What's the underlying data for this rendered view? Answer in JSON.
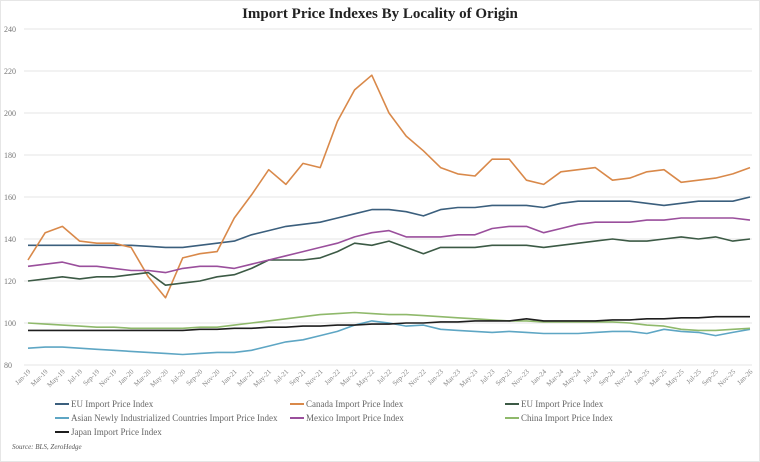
{
  "chart_data": {
    "type": "line",
    "title": "Import Price Indexes By Locality of Origin",
    "ylim": [
      80,
      240
    ],
    "yticks": [
      80,
      100,
      120,
      140,
      160,
      180,
      200,
      220,
      240
    ],
    "grid": true,
    "legend_placement": "bottom",
    "x": [
      "Jan-19",
      "Mar-19",
      "May-19",
      "Jul-19",
      "Sep-19",
      "Nov-19",
      "Jan-20",
      "Mar-20",
      "May-20",
      "Jul-20",
      "Sep-20",
      "Nov-20",
      "Jan-21",
      "Mar-21",
      "May-21",
      "Jul-21",
      "Sep-21",
      "Nov-21",
      "Jan-22",
      "Mar-22",
      "May-22",
      "Jul-22",
      "Sep-22",
      "Nov-22",
      "Jan-23",
      "Mar-23",
      "May-23",
      "Jul-23",
      "Sep-23",
      "Nov-23",
      "Jan-24",
      "Mar-24",
      "May-24",
      "Jul-24",
      "Sep-24",
      "Nov-24",
      "Jan-25",
      "Mar-25",
      "May-25",
      "Jul-25",
      "Sep-25",
      "Nov-25",
      "Jan-26"
    ],
    "series": [
      {
        "name": "EU Import Price Index",
        "color": "#3b5f7d",
        "values": [
          137,
          137,
          137,
          137,
          137,
          137,
          137,
          136.5,
          136,
          136,
          137,
          138,
          139,
          142,
          144,
          146,
          147,
          148,
          150,
          152,
          154,
          154,
          153,
          151,
          154,
          155,
          155,
          156,
          156,
          156,
          155,
          157,
          158,
          158,
          158,
          158,
          157,
          156,
          157,
          158,
          158,
          158,
          160
        ]
      },
      {
        "name": "Canada Import Price Index",
        "color": "#d9894a",
        "values": [
          130,
          143,
          146,
          139,
          138,
          138,
          136,
          122,
          112,
          131,
          133,
          134,
          150,
          161,
          173,
          166,
          176,
          174,
          196,
          211,
          218,
          200,
          189,
          182,
          174,
          171,
          170,
          178,
          178,
          168,
          166,
          172,
          173,
          174,
          168,
          169,
          172,
          173,
          167,
          168,
          169,
          171,
          174
        ]
      },
      {
        "name": "EU Import Price Index",
        "color": "#3c5a45",
        "values": [
          120,
          121,
          122,
          121,
          122,
          122,
          123,
          124,
          118,
          119,
          120,
          122,
          123,
          126,
          130,
          130,
          130,
          131,
          134,
          138,
          137,
          139,
          136,
          133,
          136,
          136,
          136,
          137,
          137,
          137,
          136,
          137,
          138,
          139,
          140,
          139,
          139,
          140,
          141,
          140,
          141,
          139,
          140
        ]
      },
      {
        "name": "Asian Newly Industrialized Countries Import Price Index",
        "color": "#5ea6c4",
        "values": [
          88,
          88.5,
          88.5,
          88,
          87.5,
          87,
          86.5,
          86,
          85.5,
          85,
          85.5,
          86,
          86,
          87,
          89,
          91,
          92,
          94,
          96,
          99,
          101,
          100,
          98.5,
          99,
          97,
          96.5,
          96,
          95.5,
          96,
          95.5,
          95,
          95,
          95,
          95.5,
          96,
          96,
          95,
          97,
          96,
          95.5,
          94,
          95.5,
          97
        ]
      },
      {
        "name": "Mexico Import Price Index",
        "color": "#9a4f9c",
        "values": [
          127,
          128,
          129,
          127,
          127,
          126,
          125,
          125,
          124,
          126,
          127,
          127,
          126,
          128,
          130,
          132,
          134,
          136,
          138,
          141,
          143,
          144,
          141,
          141,
          141,
          142,
          142,
          145,
          146,
          146,
          143,
          145,
          147,
          148,
          148,
          148,
          149,
          149,
          150,
          150,
          150,
          150,
          149
        ]
      },
      {
        "name": "China Import Price Index",
        "color": "#8fb96b",
        "values": [
          100,
          99.5,
          99,
          98.5,
          98,
          98,
          97.5,
          97.5,
          97.5,
          97.5,
          98,
          98,
          99,
          100,
          101,
          102,
          103,
          104,
          104.5,
          105,
          104.5,
          104,
          104,
          103.5,
          103,
          102.5,
          102,
          101.5,
          101,
          101,
          100.5,
          100.5,
          100.5,
          100.5,
          100.5,
          100,
          99,
          98.5,
          97,
          96.5,
          96.5,
          97,
          97.5
        ]
      },
      {
        "name": "Japan Import Price Index",
        "color": "#1e1e1e",
        "values": [
          96.5,
          96.5,
          96.5,
          96.5,
          96.5,
          96.5,
          96.5,
          96.5,
          96.5,
          96.5,
          97,
          97,
          97.5,
          97.5,
          98,
          98,
          98.5,
          98.5,
          99,
          99,
          99.5,
          99.5,
          100,
          100,
          100.5,
          100.5,
          101,
          101,
          101,
          102,
          101,
          101,
          101,
          101,
          101.5,
          101.5,
          102,
          102,
          102.5,
          102.5,
          103,
          103,
          103
        ]
      }
    ]
  },
  "source": "Source: BLS, ZeroHedge"
}
